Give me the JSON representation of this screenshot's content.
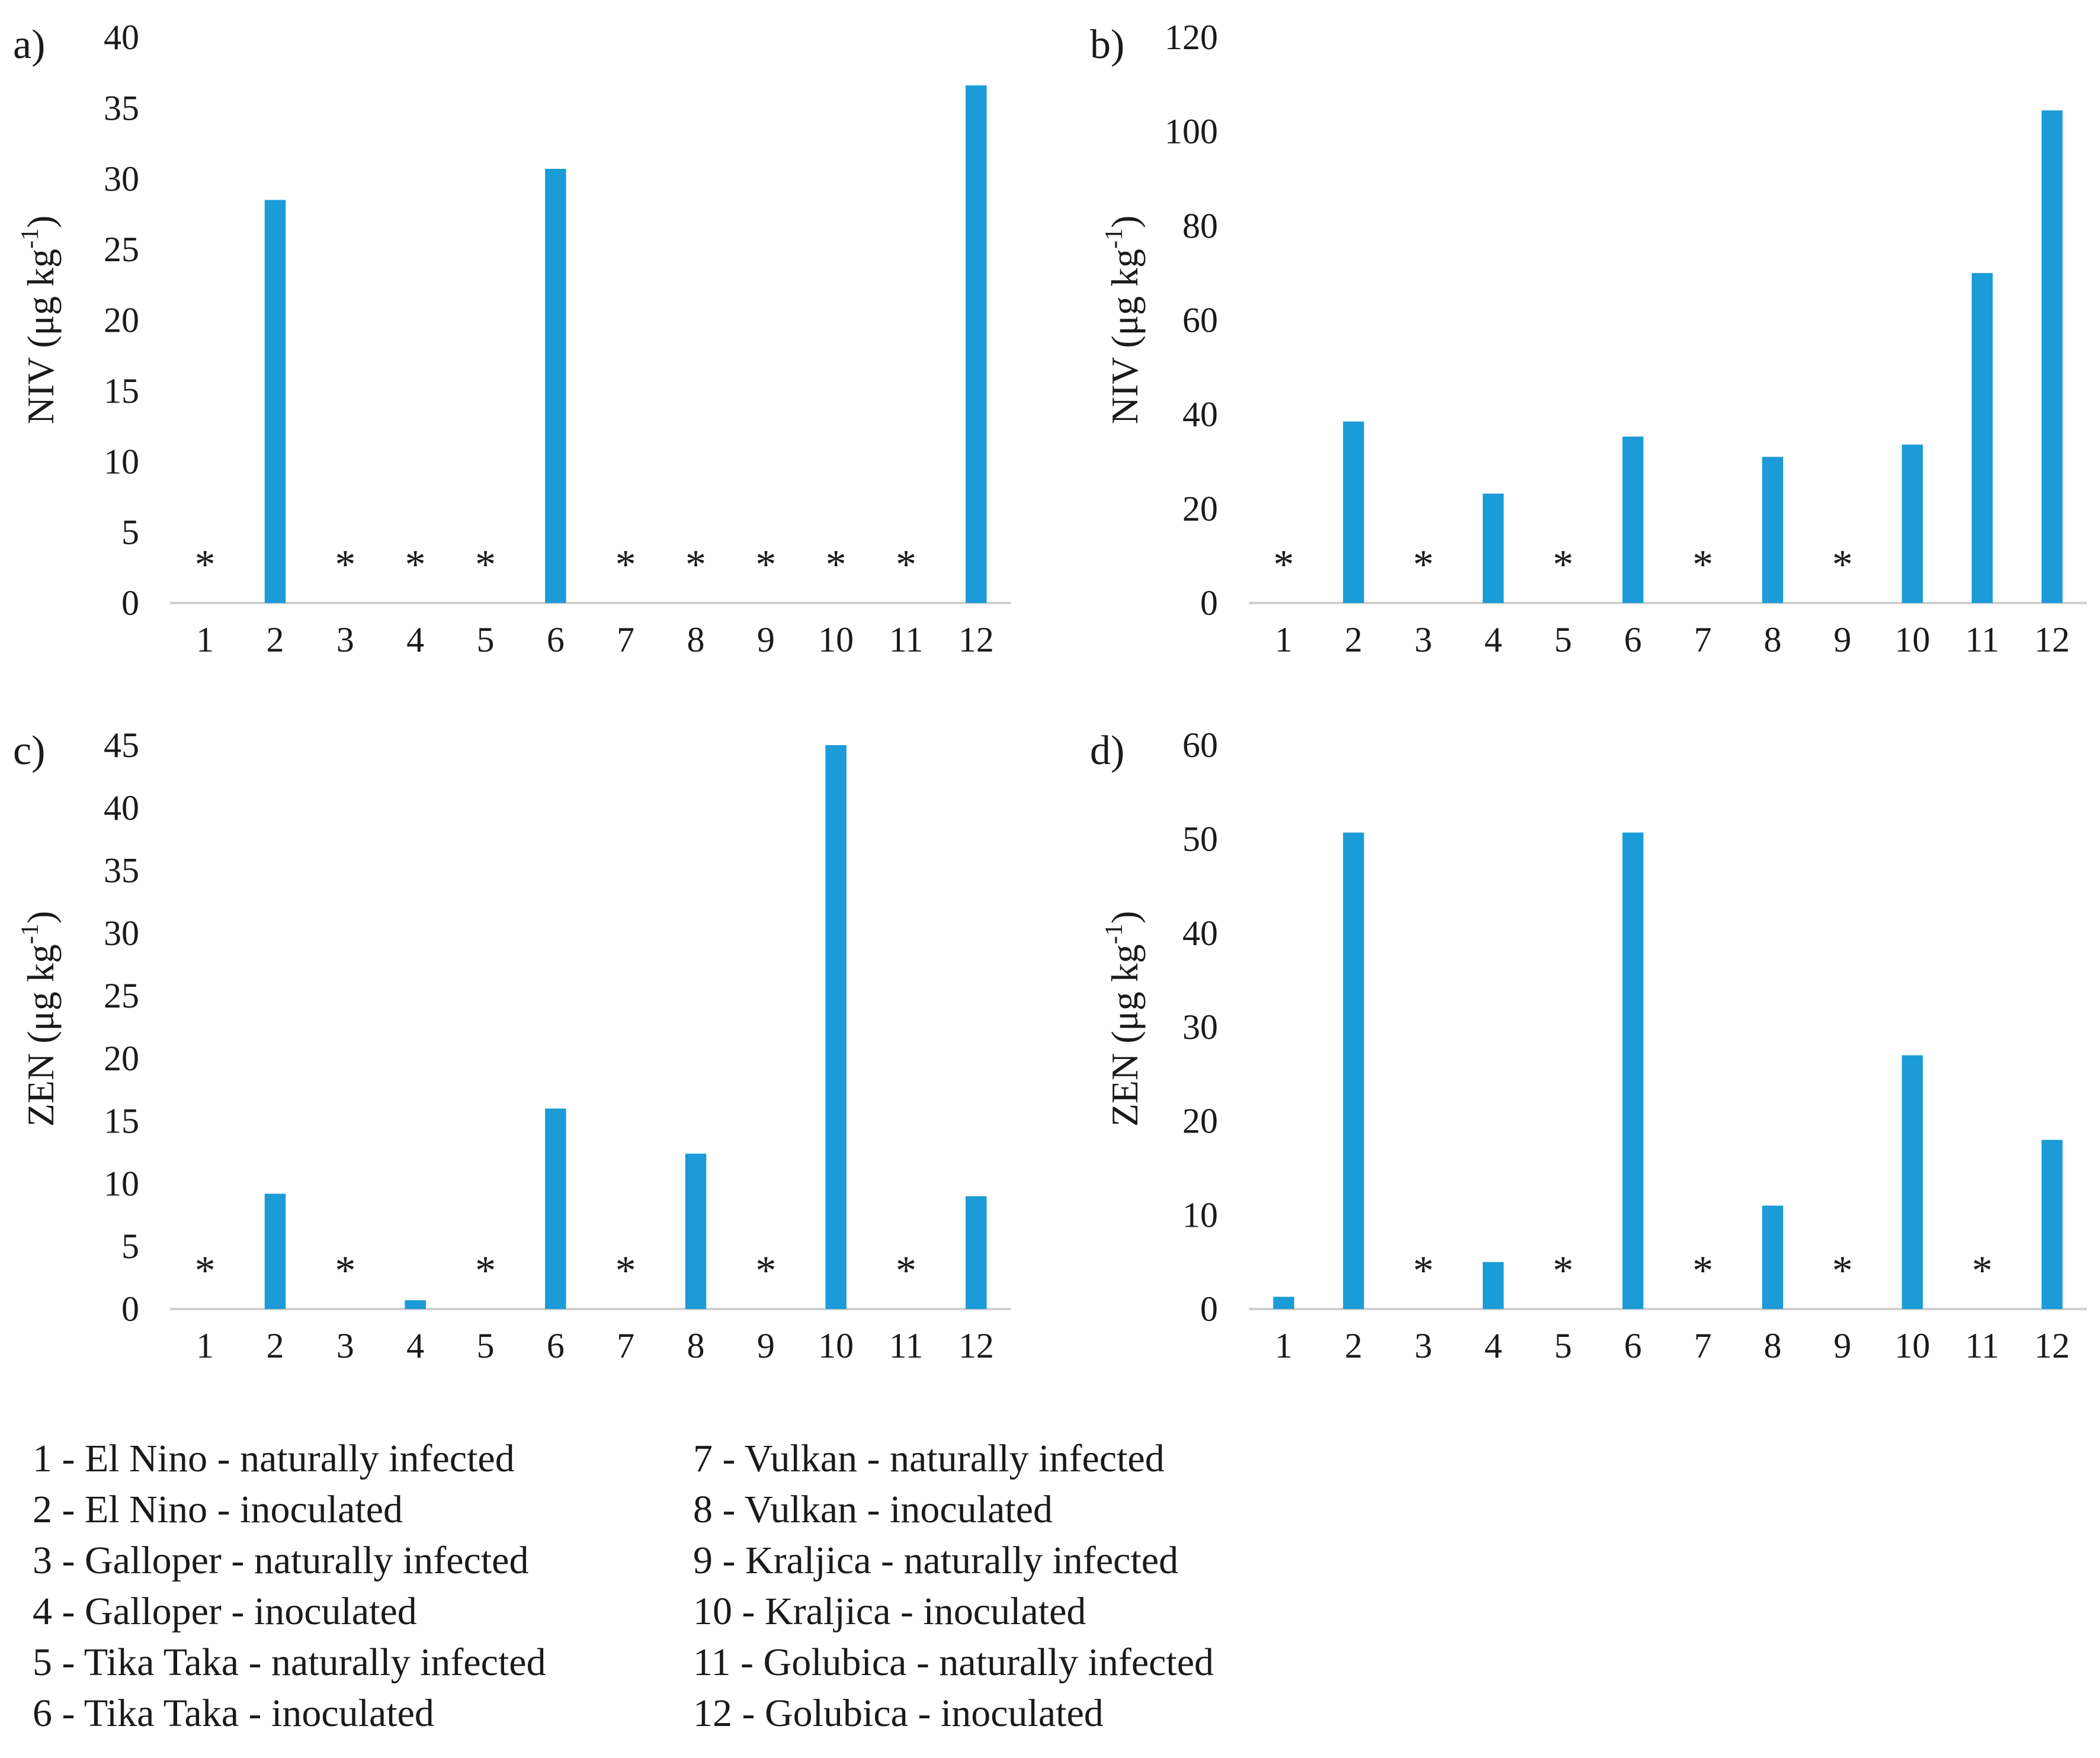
{
  "chart_data": [
    {
      "type": "bar",
      "panel_label": "a)",
      "ylabel": "NIV (μg kg",
      "ylabel_sup": "-1",
      "ylabel_close": ")",
      "categories": [
        "1",
        "2",
        "3",
        "4",
        "5",
        "6",
        "7",
        "8",
        "9",
        "10",
        "11",
        "12"
      ],
      "values": [
        0,
        28.5,
        0,
        0,
        0,
        30.7,
        0,
        0,
        0,
        0,
        0,
        36.6
      ],
      "not_detected": [
        1,
        3,
        4,
        5,
        7,
        8,
        9,
        10,
        11
      ],
      "marker": "*",
      "ylim": [
        0,
        40
      ],
      "yticks": [
        0,
        5,
        10,
        15,
        20,
        25,
        30,
        35,
        40
      ],
      "color": "#1b9bd7"
    },
    {
      "type": "bar",
      "panel_label": "b)",
      "ylabel": "NIV (μg kg",
      "ylabel_sup": "-1",
      "ylabel_close": ")",
      "categories": [
        "1",
        "2",
        "3",
        "4",
        "5",
        "6",
        "7",
        "8",
        "9",
        "10",
        "11",
        "12"
      ],
      "values": [
        0,
        38.5,
        0,
        23.2,
        0,
        35.3,
        0,
        31,
        0,
        33.6,
        70,
        104.5
      ],
      "not_detected": [
        1,
        3,
        5,
        7,
        9
      ],
      "marker": "*",
      "ylim": [
        0,
        120
      ],
      "yticks": [
        0,
        20,
        40,
        60,
        80,
        100,
        120
      ],
      "color": "#1b9bd7"
    },
    {
      "type": "bar",
      "panel_label": "c)",
      "ylabel": "ZEN (μg kg",
      "ylabel_sup": "-1",
      "ylabel_close": ")",
      "categories": [
        "1",
        "2",
        "3",
        "4",
        "5",
        "6",
        "7",
        "8",
        "9",
        "10",
        "11",
        "12"
      ],
      "values": [
        0,
        9.2,
        0,
        0.7,
        0,
        16,
        0,
        12.4,
        0,
        45,
        0,
        9
      ],
      "not_detected": [
        1,
        3,
        5,
        7,
        9,
        11
      ],
      "marker": "*",
      "ylim": [
        0,
        45
      ],
      "yticks": [
        0,
        5,
        10,
        15,
        20,
        25,
        30,
        35,
        40,
        45
      ],
      "color": "#1b9bd7"
    },
    {
      "type": "bar",
      "panel_label": "d)",
      "ylabel": "ZEN (μg kg",
      "ylabel_sup": "-1",
      "ylabel_close": ")",
      "categories": [
        "1",
        "2",
        "3",
        "4",
        "5",
        "6",
        "7",
        "8",
        "9",
        "10",
        "11",
        "12"
      ],
      "values": [
        1.3,
        50.7,
        0,
        5,
        0,
        50.7,
        0,
        11,
        0,
        27,
        0,
        18
      ],
      "not_detected": [
        3,
        5,
        7,
        9,
        11
      ],
      "marker": "*",
      "ylim": [
        0,
        60
      ],
      "yticks": [
        0,
        10,
        20,
        30,
        40,
        50,
        60
      ],
      "color": "#1b9bd7"
    }
  ],
  "legend": {
    "col1": [
      "1 - El Nino  - naturally infected",
      "2 - El Nino - inoculated",
      "3 - Galloper - naturally infected",
      "4 - Galloper - inoculated",
      "5 - Tika Taka - naturally infected",
      "6 - Tika Taka - inoculated"
    ],
    "col2": [
      "7 - Vulkan - naturally infected",
      "8 - Vulkan - inoculated",
      "9 - Kraljica - naturally infected",
      "10 - Kraljica - inoculated",
      "11 - Golubica - naturally infected",
      "12 - Golubica - inoculated"
    ]
  }
}
